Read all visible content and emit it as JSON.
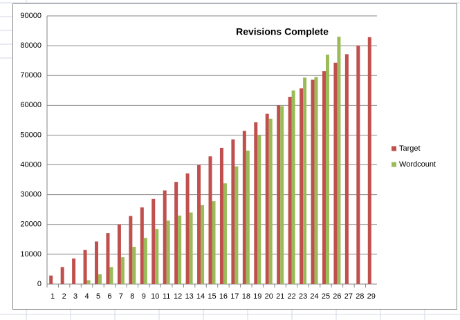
{
  "chart_data": {
    "type": "bar",
    "title": "Revisions Complete",
    "categories": [
      "1",
      "2",
      "3",
      "4",
      "5",
      "6",
      "7",
      "8",
      "9",
      "10",
      "11",
      "12",
      "13",
      "14",
      "15",
      "16",
      "17",
      "18",
      "19",
      "20",
      "21",
      "22",
      "23",
      "24",
      "25",
      "26",
      "27",
      "28",
      "29"
    ],
    "series": [
      {
        "name": "Target",
        "color": "#c0504d",
        "values": [
          2857,
          5714,
          8571,
          11429,
          14286,
          17143,
          20000,
          22857,
          25714,
          28571,
          31429,
          34286,
          37143,
          40000,
          42857,
          45714,
          48571,
          51429,
          54286,
          57143,
          60000,
          62857,
          65714,
          68571,
          71429,
          74286,
          77143,
          80000,
          82857
        ]
      },
      {
        "name": "Wordcount",
        "color": "#9bbb59",
        "values": [
          0,
          0,
          0,
          1300,
          3300,
          5700,
          9000,
          12500,
          15500,
          18500,
          21300,
          23000,
          24000,
          26500,
          27800,
          33800,
          39500,
          44800,
          50000,
          55500,
          59700,
          65000,
          69300,
          69500,
          77000,
          83000,
          null,
          null,
          null
        ]
      }
    ],
    "ylim": [
      0,
      90000
    ],
    "yticks": [
      0,
      10000,
      20000,
      30000,
      40000,
      50000,
      60000,
      70000,
      80000,
      90000
    ],
    "grid": true,
    "legend": "right"
  }
}
